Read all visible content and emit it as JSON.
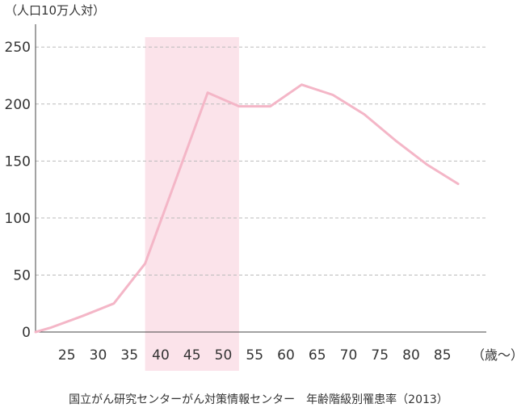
{
  "chart_data": {
    "type": "line",
    "ylabel": "（人口10万人対）",
    "xunit": "（歳〜）",
    "source": "国立がん研究センターがん対策情報センター　年齢階級別罹患率（2013）",
    "x_ticks": [
      "25",
      "30",
      "35",
      "40",
      "45",
      "50",
      "55",
      "60",
      "65",
      "70",
      "75",
      "80",
      "85"
    ],
    "y_ticks": [
      "0",
      "50",
      "100",
      "150",
      "200",
      "250"
    ],
    "ylim": [
      0,
      270
    ],
    "xlim": [
      20,
      92
    ],
    "grid": true,
    "highlight_range": [
      37.5,
      52.5
    ],
    "series": [
      {
        "x": [
          20,
          22.5,
          27.5,
          32.5,
          37.5,
          42.5,
          47.5,
          52.5,
          57.5,
          62.5,
          67.5,
          72.5,
          77.5,
          82.5,
          87.5
        ],
        "y": [
          0,
          4,
          14,
          25,
          60,
          135,
          210,
          198,
          198,
          217,
          208,
          191,
          168,
          147,
          130
        ]
      }
    ],
    "colors": {
      "line": "#f4b6c7",
      "highlight": "#fbe3ea",
      "grid": "#bbbbbb",
      "axis": "#444444"
    }
  }
}
